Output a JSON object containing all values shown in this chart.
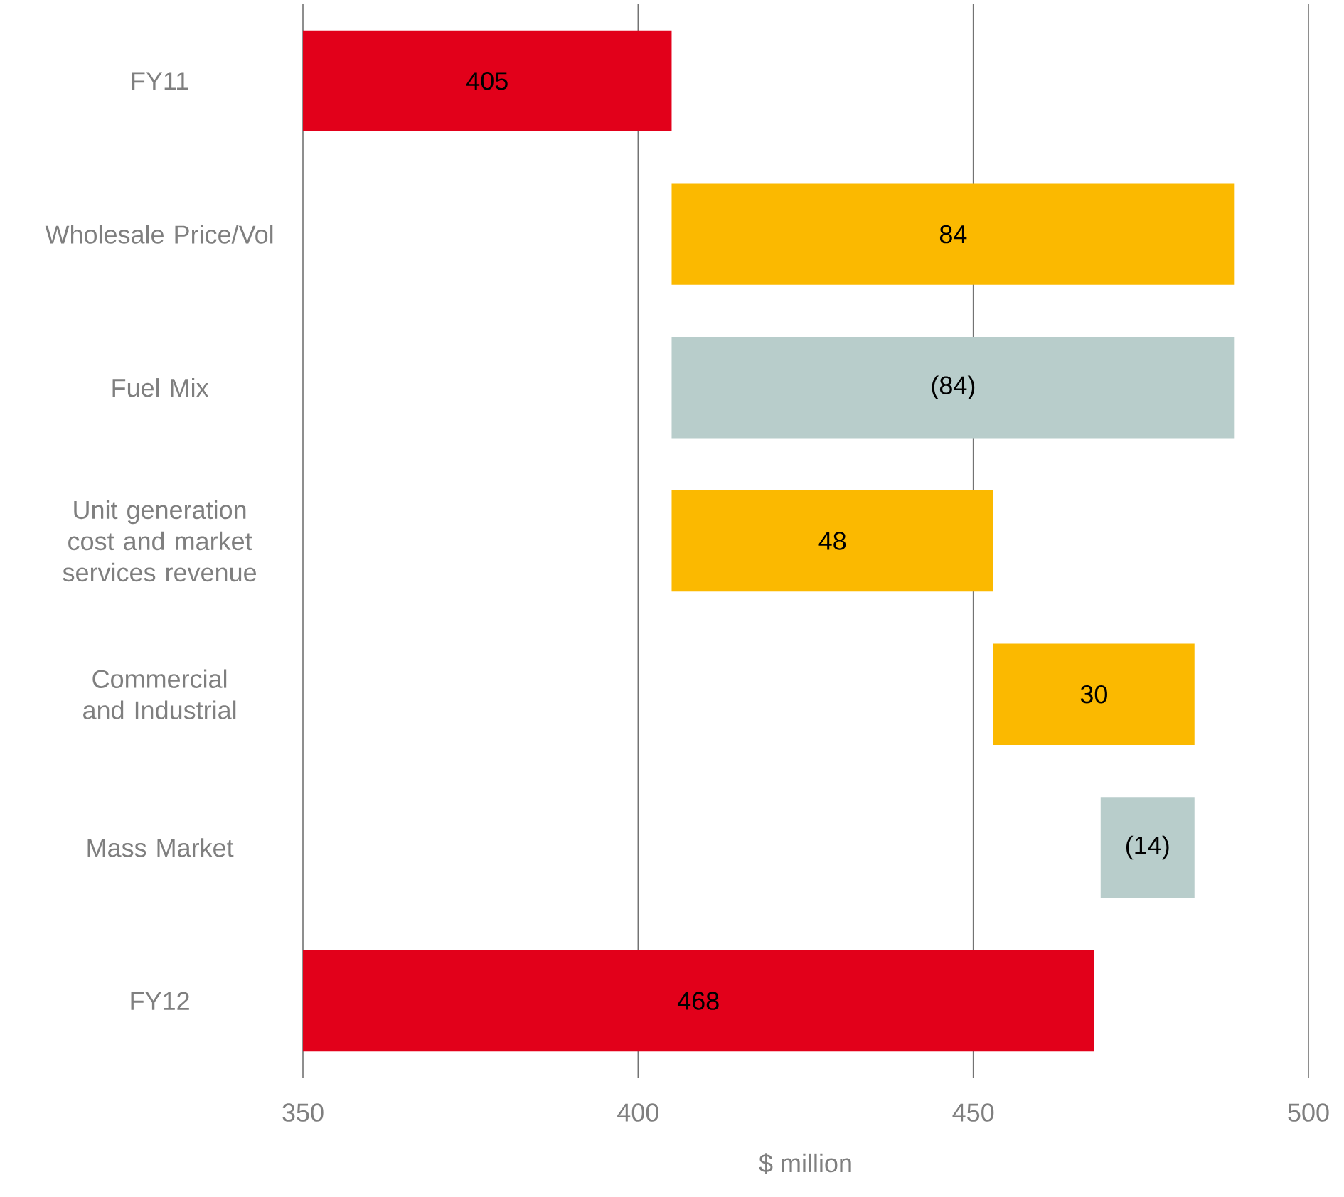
{
  "chart_data": {
    "type": "bar",
    "orientation": "horizontal",
    "categories": [
      "FY11",
      "Wholesale Price/Vol",
      "Fuel Mix",
      "Unit generation cost and market services revenue",
      "Commercial and Industrial",
      "Mass Market",
      "FY12"
    ],
    "values": [
      405,
      84,
      -84,
      48,
      30,
      -14,
      468
    ],
    "base": [
      null,
      405,
      489,
      405,
      453,
      483,
      null
    ],
    "colors": [
      "#e2001a",
      "#fbb900",
      "#b8cdcb",
      "#fbb900",
      "#fbb900",
      "#b8cdcb",
      "#e2001a"
    ],
    "value_labels": [
      "405",
      "84",
      "(84)",
      "48",
      "30",
      "(14)",
      "468"
    ],
    "xlim": [
      350,
      500
    ],
    "xticks": [
      350,
      400,
      450,
      500
    ],
    "xlabel": "$ million",
    "grid": "x"
  }
}
